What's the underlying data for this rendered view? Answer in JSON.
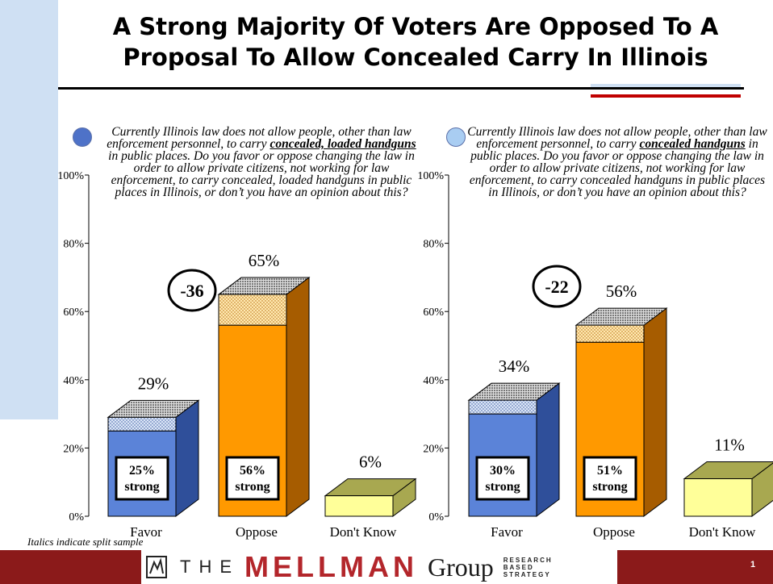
{
  "slide": {
    "title_line1": "A Strong Majority Of Voters Are Opposed To A",
    "title_line2": "Proposal To Allow Concealed Carry In Illinois",
    "footnote": "Italics indicate split sample",
    "page_number": "1"
  },
  "logo": {
    "the": "THE",
    "mellman": "MELLMAN",
    "group": "Group",
    "tagline": [
      "RESEARCH",
      "BASED",
      "STRATEGY"
    ]
  },
  "colors": {
    "favor": "#5b83d8",
    "favor_side": "#2f4f9a",
    "oppose": "#ff9900",
    "oppose_side": "#a65c00",
    "dont_know": "#ffff99",
    "dont_know_side": "#a8a850",
    "title_rule": "#000000",
    "accent_red": "#c00000",
    "accent_blue": "#cfe0f3",
    "footer": "#8b1a1a"
  },
  "chart_data": [
    {
      "type": "bar",
      "question_pre": "Currently Illinois law does not allow people, other than law enforcement personnel, to carry",
      "question_emph": "concealed, loaded handguns",
      "question_post": "in public places. Do you favor or oppose changing the law in order to allow private citizens, not working for law enforcement, to carry concealed, loaded handguns in public places in Illinois, or don’t you have an opinion about this?",
      "categories": [
        "Favor",
        "Oppose",
        "Don't Know"
      ],
      "values": [
        29,
        65,
        6
      ],
      "strong": [
        25,
        56,
        null
      ],
      "value_labels": [
        "29%",
        "65%",
        "6%"
      ],
      "strong_labels": [
        [
          "25%",
          "strong"
        ],
        [
          "56%",
          "strong"
        ],
        null
      ],
      "net_label": "-36",
      "ylim": [
        0,
        100
      ],
      "yticks": [
        "0%",
        "20%",
        "40%",
        "60%",
        "80%",
        "100%"
      ]
    },
    {
      "type": "bar",
      "question_pre": "Currently Illinois law does not allow people, other than law enforcement personnel, to carry",
      "question_emph": "concealed handguns",
      "question_post": "in public places. Do you favor or oppose changing the law in order to allow private citizens, not working for law enforcement, to carry concealed handguns in public places in Illinois, or don’t you have an opinion about this?",
      "categories": [
        "Favor",
        "Oppose",
        "Don't Know"
      ],
      "values": [
        34,
        56,
        11
      ],
      "strong": [
        30,
        51,
        null
      ],
      "value_labels": [
        "34%",
        "56%",
        "11%"
      ],
      "strong_labels": [
        [
          "30%",
          "strong"
        ],
        [
          "51%",
          "strong"
        ],
        null
      ],
      "net_label": "-22",
      "ylim": [
        0,
        100
      ],
      "yticks": [
        "0%",
        "20%",
        "40%",
        "60%",
        "80%",
        "100%"
      ]
    }
  ]
}
